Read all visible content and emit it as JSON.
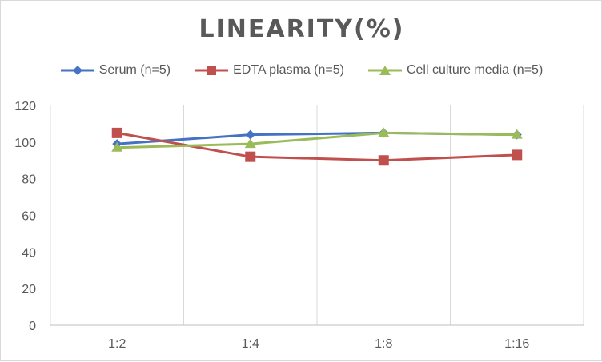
{
  "chart_data": {
    "type": "line",
    "title": "LINEARITY(%)",
    "xlabel": "",
    "ylabel": "",
    "categories": [
      "1:2",
      "1:4",
      "1:8",
      "1:16"
    ],
    "ylim": [
      0,
      120
    ],
    "yticks": [
      0,
      20,
      40,
      60,
      80,
      100,
      120
    ],
    "grid": "vertical",
    "legend_position": "top",
    "series": [
      {
        "name": "Serum (n=5)",
        "color": "#4472c4",
        "marker": "diamond",
        "values": [
          99,
          104,
          105,
          104
        ]
      },
      {
        "name": "EDTA plasma (n=5)",
        "color": "#c0504d",
        "marker": "square",
        "values": [
          105,
          92,
          90,
          93
        ]
      },
      {
        "name": "Cell culture media (n=5)",
        "color": "#9bbb59",
        "marker": "triangle",
        "values": [
          97,
          99,
          105,
          104
        ]
      }
    ]
  }
}
